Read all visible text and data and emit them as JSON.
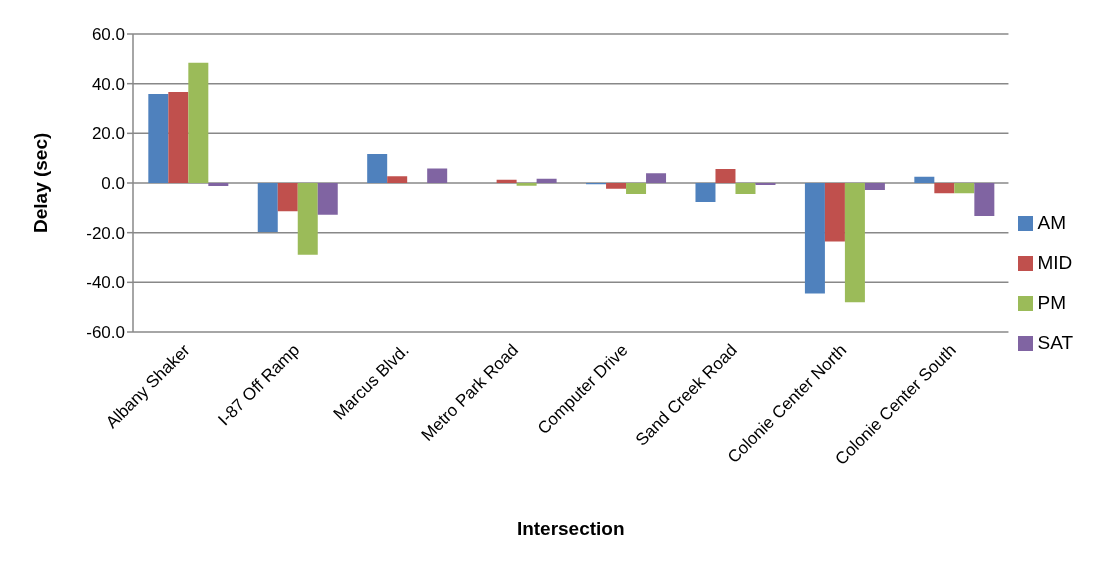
{
  "chart_data": {
    "type": "bar",
    "xlabel": "Intersection",
    "ylabel": "Delay (sec)",
    "categories": [
      "Albany Shaker",
      "I-87 Off Ramp",
      "Marcus Blvd.",
      "Metro Park Road",
      "Computer Drive",
      "Sand Creek Road",
      "Colonie Center North",
      "Colonie Center South"
    ],
    "series": [
      {
        "name": "AM",
        "color": "#4f81bd",
        "values": [
          35.8,
          -19.7,
          11.7,
          0,
          -0.5,
          -7.7,
          -44.5,
          2.5
        ]
      },
      {
        "name": "MID",
        "color": "#c0504d",
        "values": [
          36.6,
          -11.4,
          2.7,
          1.3,
          -2.3,
          5.6,
          -23.6,
          -4.1
        ]
      },
      {
        "name": "PM",
        "color": "#9bbb59",
        "values": [
          48.4,
          -28.9,
          0,
          -1.1,
          -4.4,
          -4.4,
          -48,
          -4.1
        ]
      },
      {
        "name": "SAT",
        "color": "#8064a2",
        "values": [
          -1.2,
          -12.8,
          5.8,
          1.7,
          3.9,
          -0.8,
          -2.8,
          -13.3
        ]
      }
    ],
    "ylim": [
      -60,
      60
    ],
    "yticks": [
      {
        "value": -60,
        "label": "-60.0"
      },
      {
        "value": -40,
        "label": "-40.0"
      },
      {
        "value": -20,
        "label": "-20.0"
      },
      {
        "value": 0,
        "label": "0.0"
      },
      {
        "value": 20,
        "label": "20.0"
      },
      {
        "value": 40,
        "label": "40.0"
      },
      {
        "value": 60,
        "label": "60.0"
      }
    ],
    "grid": "y",
    "legend": "right"
  }
}
